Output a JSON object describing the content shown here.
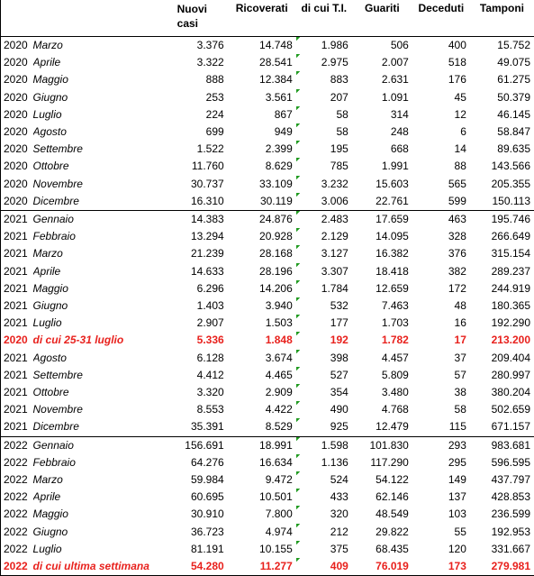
{
  "table": {
    "columns": [
      "Nuovi casi",
      "Ricoverati",
      "di cui T.I.",
      "Guariti",
      "Deceduti",
      "Tamponi"
    ],
    "groups": [
      {
        "rows": [
          {
            "cells": [
              "2020",
              "Marzo",
              "3.376",
              "14.748",
              "1.986",
              "506",
              "400",
              "15.752"
            ]
          },
          {
            "cells": [
              "2020",
              "Aprile",
              "3.322",
              "28.541",
              "2.975",
              "2.007",
              "518",
              "49.075"
            ]
          },
          {
            "cells": [
              "2020",
              "Maggio",
              "888",
              "12.384",
              "883",
              "2.631",
              "176",
              "61.275"
            ]
          },
          {
            "cells": [
              "2020",
              "Giugno",
              "253",
              "3.561",
              "207",
              "1.091",
              "45",
              "50.379"
            ]
          },
          {
            "cells": [
              "2020",
              "Luglio",
              "224",
              "867",
              "58",
              "314",
              "12",
              "46.145"
            ]
          },
          {
            "cells": [
              "2020",
              "Agosto",
              "699",
              "949",
              "58",
              "248",
              "6",
              "58.847"
            ]
          },
          {
            "cells": [
              "2020",
              "Settembre",
              "1.522",
              "2.399",
              "195",
              "668",
              "14",
              "89.635"
            ]
          },
          {
            "cells": [
              "2020",
              "Ottobre",
              "11.760",
              "8.629",
              "785",
              "1.991",
              "88",
              "143.566"
            ]
          },
          {
            "cells": [
              "2020",
              "Novembre",
              "30.737",
              "33.109",
              "3.232",
              "15.603",
              "565",
              "205.355"
            ]
          },
          {
            "cells": [
              "2020",
              "Dicembre",
              "16.310",
              "30.119",
              "3.006",
              "22.761",
              "599",
              "150.113"
            ]
          }
        ]
      },
      {
        "rows": [
          {
            "cells": [
              "2021",
              "Gennaio",
              "14.383",
              "24.876",
              "2.483",
              "17.659",
              "463",
              "195.746"
            ]
          },
          {
            "cells": [
              "2021",
              "Febbraio",
              "13.294",
              "20.928",
              "2.129",
              "14.095",
              "328",
              "266.649"
            ]
          },
          {
            "cells": [
              "2021",
              "Marzo",
              "21.239",
              "28.168",
              "3.127",
              "16.382",
              "376",
              "315.154"
            ]
          },
          {
            "cells": [
              "2021",
              "Aprile",
              "14.633",
              "28.196",
              "3.307",
              "18.418",
              "382",
              "289.237"
            ]
          },
          {
            "cells": [
              "2021",
              "Maggio",
              "6.296",
              "14.206",
              "1.784",
              "12.659",
              "172",
              "244.919"
            ]
          },
          {
            "cells": [
              "2021",
              "Giugno",
              "1.403",
              "3.940",
              "532",
              "7.463",
              "48",
              "180.365"
            ]
          },
          {
            "cells": [
              "2021",
              "Luglio",
              "2.907",
              "1.503",
              "177",
              "1.703",
              "16",
              "192.290"
            ]
          },
          {
            "cells": [
              "2020",
              "di cui 25-31 luglio",
              "5.336",
              "1.848",
              "192",
              "1.782",
              "17",
              "213.200"
            ],
            "highlight": true
          },
          {
            "cells": [
              "2021",
              "Agosto",
              "6.128",
              "3.674",
              "398",
              "4.457",
              "37",
              "209.404"
            ]
          },
          {
            "cells": [
              "2021",
              "Settembre",
              "4.412",
              "4.465",
              "527",
              "5.809",
              "57",
              "280.997"
            ]
          },
          {
            "cells": [
              "2021",
              "Ottobre",
              "3.320",
              "2.909",
              "354",
              "3.480",
              "38",
              "380.204"
            ]
          },
          {
            "cells": [
              "2021",
              "Novembre",
              "8.553",
              "4.422",
              "490",
              "4.768",
              "58",
              "502.659"
            ]
          },
          {
            "cells": [
              "2021",
              "Dicembre",
              "35.391",
              "8.529",
              "925",
              "12.479",
              "115",
              "671.157"
            ]
          }
        ]
      },
      {
        "rows": [
          {
            "cells": [
              "2022",
              "Gennaio",
              "156.691",
              "18.991",
              "1.598",
              "101.830",
              "293",
              "983.681"
            ]
          },
          {
            "cells": [
              "2022",
              "Febbraio",
              "64.276",
              "16.634",
              "1.136",
              "117.290",
              "295",
              "596.595"
            ]
          },
          {
            "cells": [
              "2022",
              "Marzo",
              "59.984",
              "9.472",
              "524",
              "54.122",
              "149",
              "437.797"
            ]
          },
          {
            "cells": [
              "2022",
              "Aprile",
              "60.695",
              "10.501",
              "433",
              "62.146",
              "137",
              "428.853"
            ]
          },
          {
            "cells": [
              "2022",
              "Maggio",
              "30.910",
              "7.800",
              "320",
              "48.549",
              "103",
              "236.599"
            ]
          },
          {
            "cells": [
              "2022",
              "Giugno",
              "36.723",
              "4.974",
              "212",
              "29.822",
              "55",
              "192.953"
            ]
          },
          {
            "cells": [
              "2022",
              "Luglio",
              "81.191",
              "10.155",
              "375",
              "68.435",
              "120",
              "331.667"
            ]
          },
          {
            "cells": [
              "2022",
              "di cui ultima settimana",
              "54.280",
              "11.277",
              "409",
              "76.019",
              "173",
              "279.981"
            ],
            "highlight": true
          }
        ]
      }
    ]
  }
}
